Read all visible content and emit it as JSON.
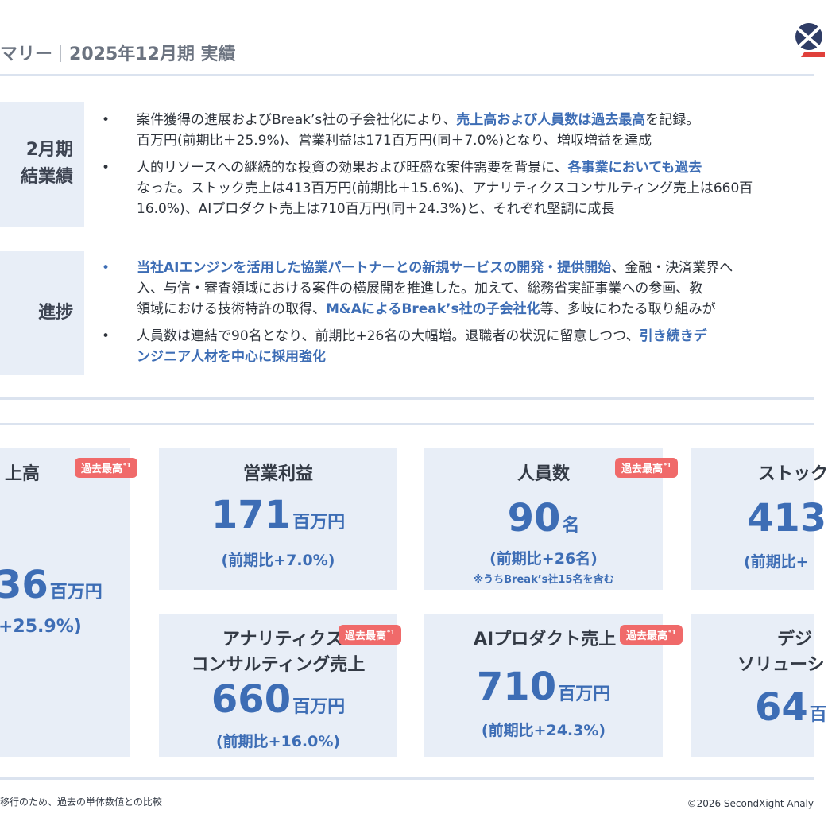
{
  "header": {
    "section": "マリー",
    "period": "2025年12月期 実績"
  },
  "results_block": {
    "label_line1": "2月期",
    "label_line2": "結業績",
    "bullets": [
      {
        "marker": "•",
        "line1_pre": "案件獲得の進展およびBreak’s社の子会社化により、",
        "line1_hl": "売上高および人員数は過去最高",
        "line1_post": "を記録。",
        "line2": "百万円(前期比＋25.9%)、営業利益は171百万円(同＋7.0%)となり、増収増益を達成"
      },
      {
        "marker": "•",
        "line1_pre": "人的リソースへの継続的な投資の効果および旺盛な案件需要を背景に、",
        "line1_hl": "各事業においても過去",
        "line2": "なった。ストック売上は413百万円(前期比＋15.6%)、アナリティクスコンサルティング売上は660百",
        "line3": "16.0%)、AIプロダクト売上は710百万円(同＋24.3%)と、それぞれ堅調に成長"
      }
    ]
  },
  "progress_block": {
    "label": "進捗",
    "bullets": [
      {
        "marker": "•",
        "line1_hl": "当社AIエンジンを活用した協業パートナーとの新規サービスの開発・提供開始",
        "line1_post": "、金融・決済業界へ",
        "line2": "入、与信・審査領域における案件の横展開を推進した。加えて、総務省実証事業への参画、教",
        "line3_pre": "領域における技術特許の取得、",
        "line3_hl": "M&AによるBreak’s社の子会社化",
        "line3_post": "等、多岐にわたる取り組みが"
      },
      {
        "marker": "•",
        "line1_pre": "人員数は連結で90名となり、前期比+26名の大幅増。退職者の状況に留意しつつ、",
        "line1_hl": "引き続きデ",
        "line2_hl": "ンジニア人材を中心に採用強化"
      }
    ]
  },
  "kpi_cards": {
    "revenue": {
      "title": "上高",
      "badge": "過去最高",
      "badge_sup": "*1",
      "value": "36",
      "unit": "百万円",
      "change": "+25.9%)"
    },
    "operating_profit": {
      "title": "営業利益",
      "value": "171",
      "unit": "百万円",
      "change": "(前期比+7.0%)"
    },
    "headcount": {
      "title": "人員数",
      "badge": "過去最高",
      "badge_sup": "*1",
      "value": "90",
      "unit": "名",
      "change": "(前期比+26名)",
      "note": "※うちBreak’s社15名を含む"
    },
    "stock": {
      "title": "ストック",
      "value": "413",
      "change": "(前期比+"
    },
    "analytics": {
      "title_line1": "アナリティクス",
      "title_line2": "コンサルティング売上",
      "badge": "過去最高",
      "badge_sup": "*1",
      "value": "660",
      "unit": "百万円",
      "change": "(前期比+16.0%)"
    },
    "ai_product": {
      "title": "AIプロダクト売上",
      "badge": "過去最高",
      "badge_sup": "*1",
      "value": "710",
      "unit": "百万円",
      "change": "(前期比+24.3%)"
    },
    "digital": {
      "title_line1": "デジ",
      "title_line2": "ソリューシ",
      "value": "64",
      "unit": "百"
    }
  },
  "footer": {
    "footnote": "移行のため、過去の単体数値との比較",
    "copyright": "©2026 SecondXight Analy"
  },
  "colors": {
    "accent": "#3d6db5",
    "badge": "#f06a6a",
    "panel": "#e8eef7"
  }
}
